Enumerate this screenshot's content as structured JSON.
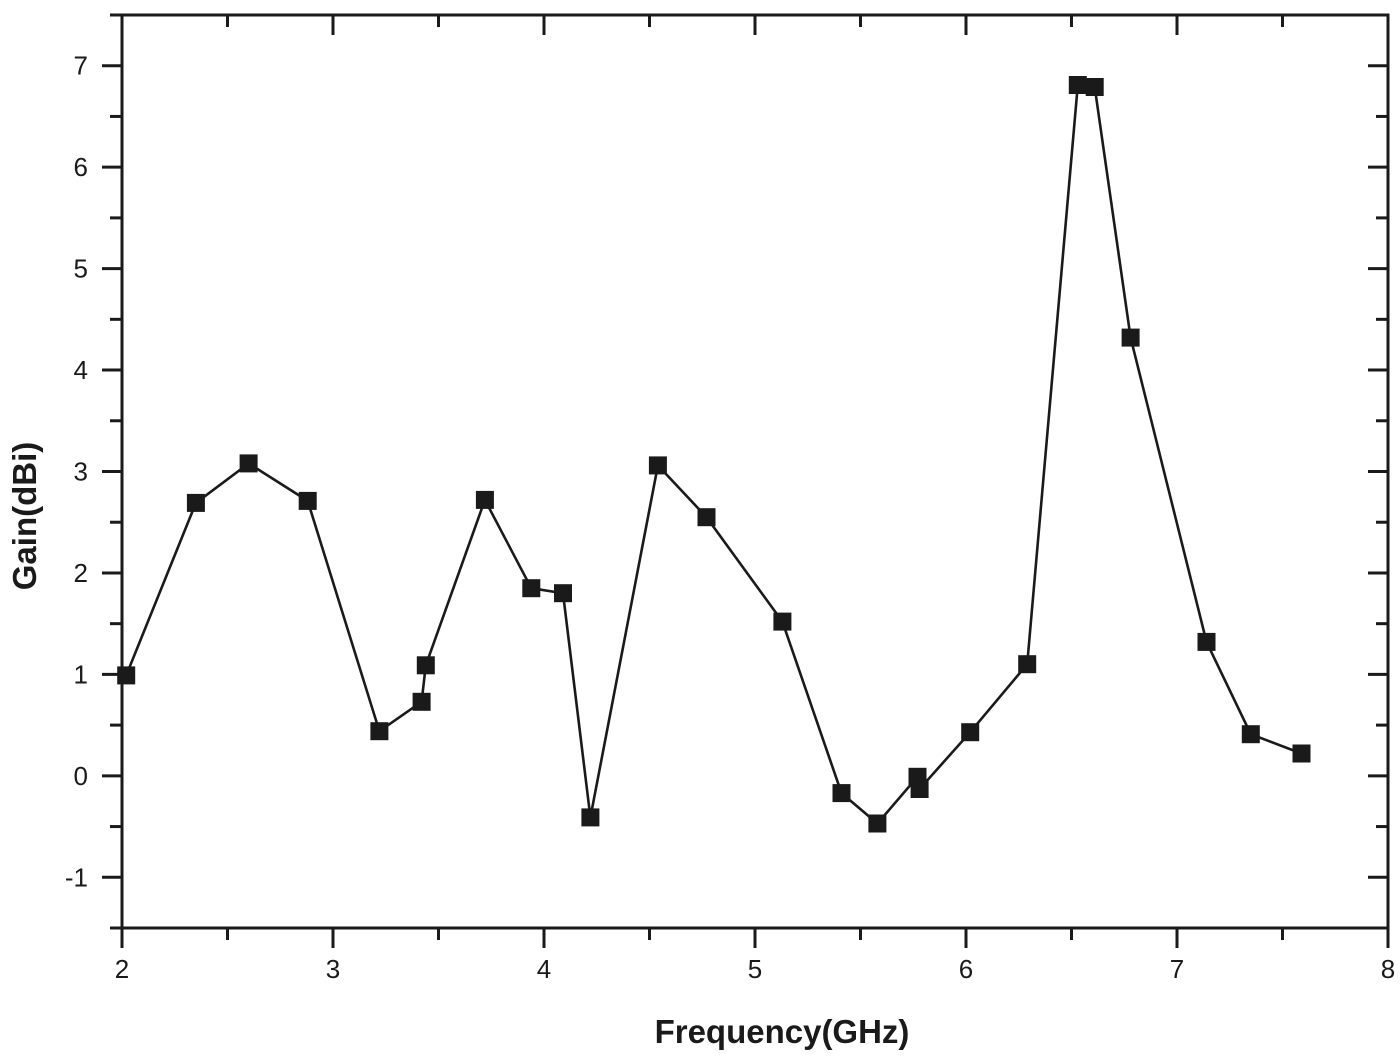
{
  "chart_data": {
    "type": "line",
    "title": "",
    "xlabel": "Frequency(GHz)",
    "ylabel": "Gain(dBi)",
    "xlim": [
      2,
      8
    ],
    "ylim": [
      -1.5,
      7.5
    ],
    "grid": false,
    "legend": null,
    "x_ticks": [
      "2",
      "3",
      "4",
      "5",
      "6",
      "7",
      "8"
    ],
    "y_ticks": [
      "-1",
      "0",
      "1",
      "2",
      "3",
      "4",
      "5",
      "6",
      "7"
    ],
    "marker": "square",
    "line_color": "#1a1a1a",
    "series": [
      {
        "name": "Gain",
        "x": [
          2.02,
          2.35,
          2.6,
          2.88,
          3.22,
          3.42,
          3.44,
          3.72,
          3.94,
          4.09,
          4.22,
          4.54,
          4.77,
          5.13,
          5.41,
          5.58,
          5.77,
          5.78,
          6.02,
          6.29,
          6.53,
          6.61,
          6.78,
          7.14,
          7.35,
          7.59
        ],
        "values": [
          0.99,
          2.69,
          3.08,
          2.71,
          0.44,
          0.73,
          1.09,
          2.72,
          1.85,
          1.8,
          -0.41,
          3.06,
          2.55,
          1.52,
          -0.17,
          -0.47,
          -0.01,
          -0.13,
          0.43,
          1.1,
          6.81,
          6.79,
          4.32,
          1.32,
          0.41,
          0.22
        ]
      }
    ]
  }
}
